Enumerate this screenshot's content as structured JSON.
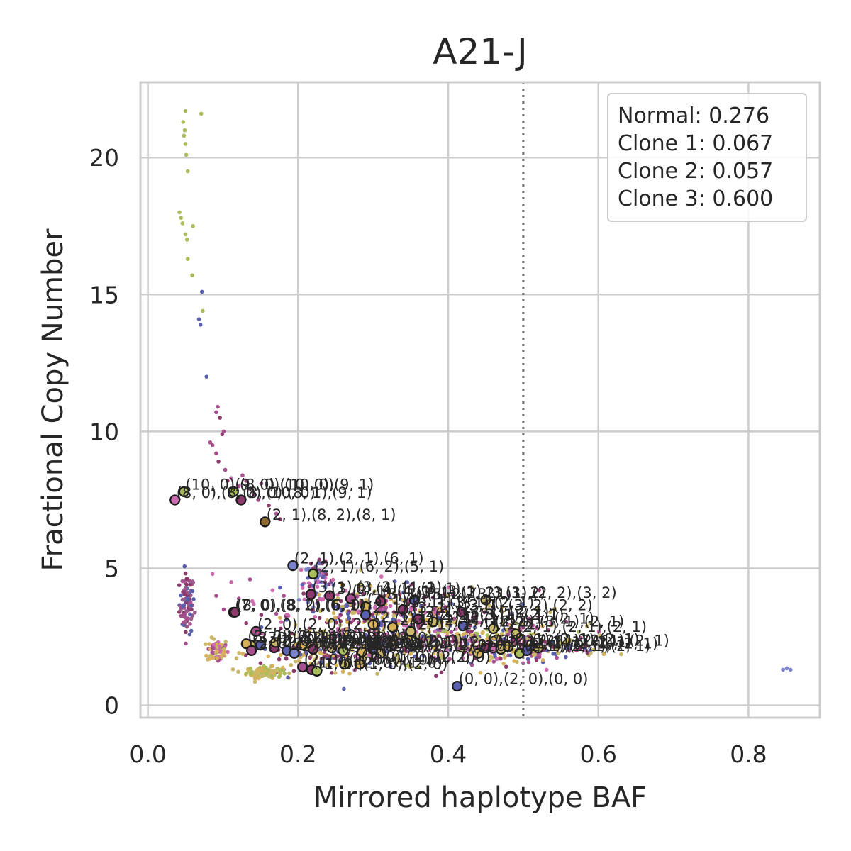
{
  "chart_data": {
    "type": "scatter",
    "title": "A21-J",
    "xlabel": "Mirrored haplotype BAF",
    "ylabel": "Fractional Copy Number",
    "xlim": [
      -0.01,
      0.895
    ],
    "ylim": [
      -0.45,
      22.75
    ],
    "x_ticks": [
      0.0,
      0.2,
      0.4,
      0.6,
      0.8
    ],
    "x_tick_labels": [
      "0.0",
      "0.2",
      "0.4",
      "0.6",
      "0.8"
    ],
    "y_ticks": [
      0,
      5,
      10,
      15,
      20
    ],
    "y_tick_labels": [
      "0",
      "5",
      "10",
      "15",
      "20"
    ],
    "grid": true,
    "reference_line": {
      "x": 0.5,
      "style": "dotted"
    },
    "legend_position": "top-right",
    "purity_text": [
      "Normal: 0.276",
      "Clone 1: 0.067",
      "Clone 2: 0.057",
      "Clone 3: 0.600"
    ],
    "palette": {
      "olive": "#a9bd5b",
      "blue": "#5a5fae",
      "magenta": "#a8508f",
      "pink": "#cd6bb0",
      "plum": "#8b3a6b",
      "tan": "#c9b86a",
      "gold": "#d7b25a",
      "periwinkle": "#7a82cc",
      "mauve": "#9a5a8a",
      "brown": "#8f6b32"
    },
    "bins": [
      {
        "x": 0.05,
        "y": 21.7,
        "c": "olive"
      },
      {
        "x": 0.047,
        "y": 21.3,
        "c": "olive"
      },
      {
        "x": 0.071,
        "y": 21.6,
        "c": "olive"
      },
      {
        "x": 0.049,
        "y": 21.0,
        "c": "olive"
      },
      {
        "x": 0.048,
        "y": 20.8,
        "c": "olive"
      },
      {
        "x": 0.05,
        "y": 20.5,
        "c": "olive"
      },
      {
        "x": 0.051,
        "y": 20.1,
        "c": "olive"
      },
      {
        "x": 0.053,
        "y": 19.5,
        "c": "olive"
      },
      {
        "x": 0.042,
        "y": 18.0,
        "c": "olive"
      },
      {
        "x": 0.044,
        "y": 17.8,
        "c": "olive"
      },
      {
        "x": 0.046,
        "y": 17.6,
        "c": "olive"
      },
      {
        "x": 0.06,
        "y": 17.5,
        "c": "olive"
      },
      {
        "x": 0.05,
        "y": 17.2,
        "c": "olive"
      },
      {
        "x": 0.052,
        "y": 17.0,
        "c": "olive"
      },
      {
        "x": 0.053,
        "y": 16.3,
        "c": "olive"
      },
      {
        "x": 0.059,
        "y": 15.7,
        "c": "olive"
      },
      {
        "x": 0.072,
        "y": 15.1,
        "c": "blue"
      },
      {
        "x": 0.073,
        "y": 14.4,
        "c": "olive"
      },
      {
        "x": 0.068,
        "y": 14.1,
        "c": "blue"
      },
      {
        "x": 0.07,
        "y": 13.9,
        "c": "blue"
      },
      {
        "x": 0.078,
        "y": 12.0,
        "c": "blue"
      },
      {
        "x": 0.093,
        "y": 10.9,
        "c": "magenta"
      },
      {
        "x": 0.091,
        "y": 10.7,
        "c": "magenta"
      },
      {
        "x": 0.096,
        "y": 10.5,
        "c": "plum"
      },
      {
        "x": 0.101,
        "y": 10.0,
        "c": "magenta"
      },
      {
        "x": 0.099,
        "y": 9.9,
        "c": "plum"
      },
      {
        "x": 0.083,
        "y": 9.6,
        "c": "magenta"
      },
      {
        "x": 0.086,
        "y": 9.5,
        "c": "magenta"
      },
      {
        "x": 0.091,
        "y": 9.2,
        "c": "magenta"
      },
      {
        "x": 0.094,
        "y": 8.9,
        "c": "plum"
      },
      {
        "x": 0.103,
        "y": 8.6,
        "c": "magenta"
      },
      {
        "x": 0.106,
        "y": 8.2,
        "c": "plum"
      },
      {
        "x": 0.126,
        "y": 8.4,
        "c": "magenta"
      },
      {
        "x": 0.131,
        "y": 8.2,
        "c": "plum"
      },
      {
        "x": 0.121,
        "y": 8.0,
        "c": "magenta"
      },
      {
        "x": 0.136,
        "y": 7.9,
        "c": "pink"
      },
      {
        "x": 0.141,
        "y": 7.7,
        "c": "magenta"
      },
      {
        "x": 0.151,
        "y": 8.1,
        "c": "plum"
      },
      {
        "x": 0.147,
        "y": 7.5,
        "c": "magenta"
      },
      {
        "x": 0.161,
        "y": 7.3,
        "c": "plum"
      },
      {
        "x": 0.171,
        "y": 7.0,
        "c": "magenta"
      },
      {
        "x": 0.176,
        "y": 6.8,
        "c": "plum"
      },
      {
        "x": 0.111,
        "y": 8.3,
        "c": "pink"
      },
      {
        "x": 0.086,
        "y": 4.8,
        "c": "pink"
      },
      {
        "x": 0.091,
        "y": 4.0,
        "c": "magenta"
      },
      {
        "x": 0.111,
        "y": 4.5,
        "c": "pink"
      },
      {
        "x": 0.121,
        "y": 3.9,
        "c": "magenta"
      },
      {
        "x": 0.136,
        "y": 4.6,
        "c": "magenta"
      },
      {
        "x": 0.141,
        "y": 3.7,
        "c": "pink"
      },
      {
        "x": 0.166,
        "y": 4.2,
        "c": "pink"
      },
      {
        "x": 0.176,
        "y": 4.3,
        "c": "blue"
      },
      {
        "x": 0.181,
        "y": 4.0,
        "c": "magenta"
      },
      {
        "x": 0.151,
        "y": 3.3,
        "c": "plum"
      },
      {
        "x": 0.101,
        "y": 3.5,
        "c": "magenta"
      },
      {
        "x": 0.131,
        "y": 3.0,
        "c": "plum"
      },
      {
        "x": 0.171,
        "y": 1.2,
        "c": "blue"
      },
      {
        "x": 0.181,
        "y": 1.3,
        "c": "pink"
      },
      {
        "x": 0.261,
        "y": 0.6,
        "c": "blue"
      },
      {
        "x": 0.391,
        "y": 1.2,
        "c": "plum"
      },
      {
        "x": 0.531,
        "y": 1.3,
        "c": "pink"
      },
      {
        "x": 0.571,
        "y": 2.0,
        "c": "magenta"
      },
      {
        "x": 0.846,
        "y": 1.3,
        "c": "periwinkle"
      },
      {
        "x": 0.851,
        "y": 1.35,
        "c": "periwinkle"
      },
      {
        "x": 0.856,
        "y": 1.3,
        "c": "periwinkle"
      },
      {
        "x": 0.521,
        "y": 4.2,
        "c": "plum"
      },
      {
        "x": 0.481,
        "y": 4.0,
        "c": "magenta"
      },
      {
        "x": 0.311,
        "y": 4.7,
        "c": "pink"
      },
      {
        "x": 0.351,
        "y": 4.4,
        "c": "magenta"
      },
      {
        "x": 0.401,
        "y": 4.3,
        "c": "pink"
      }
    ],
    "clusters": [
      {
        "cx": 0.052,
        "cy": 3.7,
        "sx": 0.005,
        "sy": 0.55,
        "n": 90,
        "c": [
          "blue",
          "plum",
          "magenta",
          "mauve"
        ]
      },
      {
        "cx": 0.093,
        "cy": 2.0,
        "sx": 0.007,
        "sy": 0.22,
        "n": 70,
        "c": [
          "tan",
          "gold",
          "magenta",
          "pink"
        ]
      },
      {
        "cx": 0.155,
        "cy": 1.2,
        "sx": 0.012,
        "sy": 0.1,
        "n": 110,
        "c": [
          "tan",
          "olive",
          "gold"
        ]
      },
      {
        "cx": 0.225,
        "cy": 4.5,
        "sx": 0.012,
        "sy": 0.35,
        "n": 70,
        "c": [
          "blue",
          "pink",
          "plum",
          "periwinkle"
        ]
      },
      {
        "cx": 0.31,
        "cy": 3.3,
        "sx": 0.06,
        "sy": 0.5,
        "n": 260,
        "c": [
          "blue",
          "plum",
          "magenta",
          "tan",
          "gold",
          "pink"
        ]
      },
      {
        "cx": 0.4,
        "cy": 2.5,
        "sx": 0.085,
        "sy": 0.5,
        "n": 360,
        "c": [
          "tan",
          "gold",
          "blue",
          "plum",
          "magenta",
          "olive",
          "pink"
        ]
      },
      {
        "cx": 0.5,
        "cy": 2.1,
        "sx": 0.05,
        "sy": 0.22,
        "n": 170,
        "c": [
          "gold",
          "tan",
          "plum",
          "blue",
          "magenta"
        ]
      },
      {
        "cx": 0.25,
        "cy": 1.9,
        "sx": 0.05,
        "sy": 0.3,
        "n": 160,
        "c": [
          "blue",
          "tan",
          "plum",
          "gold"
        ]
      }
    ],
    "segments": [
      {
        "x": 0.048,
        "y": 7.8,
        "c": "olive",
        "label": "(10, 0),(8, 0),(10, 0)"
      },
      {
        "x": 0.036,
        "y": 7.5,
        "c": "pink",
        "label": "(8, 0),(8, 0),(10, 0)"
      },
      {
        "x": 0.114,
        "y": 7.8,
        "c": "olive",
        "label": "(9, 0),(10, 0),(9, 1)"
      },
      {
        "x": 0.124,
        "y": 7.5,
        "c": "plum",
        "label": "(8, 0),(8, 1),(9, 1)"
      },
      {
        "x": 0.156,
        "y": 6.7,
        "c": "brown",
        "label": "(2, 1),(8, 2),(8, 1)"
      },
      {
        "x": 0.193,
        "y": 5.1,
        "c": "periwinkle",
        "label": "(2, 1),(2, 1),(6, 1)"
      },
      {
        "x": 0.22,
        "y": 4.8,
        "c": "olive",
        "label": "(2, 1),(6, 2),(5, 1)"
      },
      {
        "x": 0.217,
        "y": 4.05,
        "c": "plum",
        "label": "(3, 1),(3, 2),(4, 1)"
      },
      {
        "x": 0.242,
        "y": 4.0,
        "c": "plum",
        "label": "(3, 0),(4, 1),(3, 1)"
      },
      {
        "x": 0.27,
        "y": 3.9,
        "c": "magenta",
        "label": "(3, 1),(4, 1),(3, 1)"
      },
      {
        "x": 0.31,
        "y": 3.8,
        "c": "plum",
        "label": "(3, 1),(5, 2),(3, 1)"
      },
      {
        "x": 0.355,
        "y": 3.85,
        "c": "blue",
        "label": "(3, 1),(2, 2),(3, 2)"
      },
      {
        "x": 0.45,
        "y": 3.85,
        "c": "tan",
        "label": "(3, 1),(2, 2),(3, 2)"
      },
      {
        "x": 0.29,
        "y": 3.6,
        "c": "gold",
        "label": "(3, 1),(3, 1),(4, 1)"
      },
      {
        "x": 0.34,
        "y": 3.5,
        "c": "plum",
        "label": "(3, 1),(3, 1),(2, 1)"
      },
      {
        "x": 0.418,
        "y": 3.4,
        "c": "plum",
        "label": "(3, 1),(3, 2),(2, 2)"
      },
      {
        "x": 0.114,
        "y": 3.4,
        "c": "pink",
        "label": "(7, 0),(8, 2),(6, 1)"
      },
      {
        "x": 0.116,
        "y": 3.4,
        "c": "plum",
        "label": "(8, 0),(8, 0),(6, 0)"
      },
      {
        "x": 0.29,
        "y": 3.3,
        "c": "blue",
        "label": "(2, 1),(3, 1),(2, 1)"
      },
      {
        "x": 0.36,
        "y": 3.15,
        "c": "plum",
        "label": "(2, 1),(3, 1),(2, 1)"
      },
      {
        "x": 0.38,
        "y": 3.05,
        "c": "tan",
        "label": "(2, 1),(3, 1),(2, 1)"
      },
      {
        "x": 0.3,
        "y": 2.95,
        "c": "gold",
        "label": "(2, 1),(3, 1),(2, 1)"
      },
      {
        "x": 0.42,
        "y": 2.9,
        "c": "blue",
        "label": "(2, 1),(3, 1),(2, 1)"
      },
      {
        "x": 0.46,
        "y": 2.8,
        "c": "tan",
        "label": "(2, 1),(3, 1),(2, 1)"
      },
      {
        "x": 0.326,
        "y": 2.85,
        "c": "gold",
        "label": "(2, 1),(2, 1),(2, 1)"
      },
      {
        "x": 0.35,
        "y": 2.7,
        "c": "tan",
        "label": "(2, 1),(2, 1),(2, 1)"
      },
      {
        "x": 0.49,
        "y": 2.6,
        "c": "tan",
        "label": "(2, 1),(2, 1),(2, 1)"
      },
      {
        "x": 0.144,
        "y": 2.7,
        "c": "magenta",
        "label": "(2, 0),(2, 0),(2, 0)"
      },
      {
        "x": 0.137,
        "y": 2.2,
        "c": "tan",
        "label": "(3, 0),(3, 1),(3, 0)"
      },
      {
        "x": 0.131,
        "y": 2.25,
        "c": "gold",
        "label": "(3, 0),(3, 1),(3, 0)"
      },
      {
        "x": 0.15,
        "y": 2.2,
        "c": "blue",
        "label": "(3, 0),(3, 0),(3, 0)"
      },
      {
        "x": 0.138,
        "y": 2.0,
        "c": "magenta",
        "label": "(2, 0),(3, 0),(2, 0)"
      },
      {
        "x": 0.168,
        "y": 2.1,
        "c": "plum",
        "label": "(2, 0),(3, 0),(2, 0)"
      },
      {
        "x": 0.17,
        "y": 2.3,
        "c": "tan",
        "label": "(2, 0),(3, 0),(2, 0)"
      },
      {
        "x": 0.185,
        "y": 2.0,
        "c": "blue",
        "label": "(2, 0),(2, 0),(2, 0)"
      },
      {
        "x": 0.195,
        "y": 1.9,
        "c": "periwinkle",
        "label": "(2, 0),(2, 0),(2, 0)"
      },
      {
        "x": 0.205,
        "y": 2.2,
        "c": "gold",
        "label": "(2, 0),(2, 1),(2, 0)"
      },
      {
        "x": 0.22,
        "y": 2.05,
        "c": "plum",
        "label": "(2, 0),(2, 1),(2, 0)"
      },
      {
        "x": 0.245,
        "y": 2.1,
        "c": "tan",
        "label": "(2, 0),(2, 1),(2, 0)"
      },
      {
        "x": 0.26,
        "y": 2.0,
        "c": "olive",
        "label": "(2, 0),(2, 1),(2, 0)"
      },
      {
        "x": 0.285,
        "y": 1.95,
        "c": "gold",
        "label": "(2, 0),(2, 1),(2, 0)"
      },
      {
        "x": 0.3,
        "y": 2.05,
        "c": "blue",
        "label": "(2, 0),(2, 1),(2, 0)"
      },
      {
        "x": 0.31,
        "y": 1.9,
        "c": "tan",
        "label": "(2, 0),(2, 1),(2, 0)"
      },
      {
        "x": 0.45,
        "y": 2.1,
        "c": "plum",
        "label": "(2, 1),(2, 1),(2, 1)"
      },
      {
        "x": 0.46,
        "y": 2.1,
        "c": "pink",
        "label": "(2, 1),(2, 1),(2, 1)"
      },
      {
        "x": 0.47,
        "y": 2.05,
        "c": "tan",
        "label": "(2, 1),(2, 1),(2, 1)"
      },
      {
        "x": 0.48,
        "y": 2.15,
        "c": "gold",
        "label": "(2, 1),(2, 1),(2, 1)"
      },
      {
        "x": 0.495,
        "y": 1.9,
        "c": "olive",
        "label": "(2, 1),(2, 1),(2, 1)"
      },
      {
        "x": 0.505,
        "y": 2.0,
        "c": "blue",
        "label": "(2, 1),(2, 1),(2, 1)"
      },
      {
        "x": 0.52,
        "y": 2.1,
        "c": "tan",
        "label": "(2, 1),(2, 1),(2, 1)"
      },
      {
        "x": 0.44,
        "y": 1.9,
        "c": "gold",
        "label": "(2, 1),(2, 1),(2, 1)"
      },
      {
        "x": 0.206,
        "y": 1.4,
        "c": "magenta",
        "label": "(2, 0),(1, 0),(1, 0)"
      },
      {
        "x": 0.218,
        "y": 1.3,
        "c": "plum",
        "label": "(1, 0),(2, 0),(1, 0)"
      },
      {
        "x": 0.225,
        "y": 1.25,
        "c": "olive",
        "label": "(1, 0),(1, 0),(2, 0)"
      },
      {
        "x": 0.262,
        "y": 1.5,
        "c": "tan",
        "label": "(1, 0),(1, 0),(2, 0)"
      },
      {
        "x": 0.282,
        "y": 1.5,
        "c": "gold",
        "label": "(1, 0),(1, 0),(2, 0)"
      },
      {
        "x": 0.412,
        "y": 0.7,
        "c": "blue",
        "label": "(0, 0),(2, 0),(0, 0)"
      }
    ]
  }
}
